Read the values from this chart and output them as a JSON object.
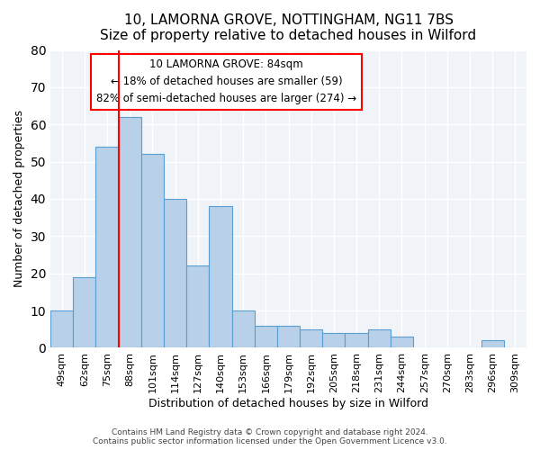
{
  "title": "10, LAMORNA GROVE, NOTTINGHAM, NG11 7BS",
  "subtitle": "Size of property relative to detached houses in Wilford",
  "xlabel": "Distribution of detached houses by size in Wilford",
  "ylabel": "Number of detached properties",
  "bar_color": "#b8d0e8",
  "bar_edge_color": "#5a9fd4",
  "background_color": "#f0f4f8",
  "bins": [
    "49sqm",
    "62sqm",
    "75sqm",
    "88sqm",
    "101sqm",
    "114sqm",
    "127sqm",
    "140sqm",
    "153sqm",
    "166sqm",
    "179sqm",
    "192sqm",
    "205sqm",
    "218sqm",
    "231sqm",
    "244sqm",
    "257sqm",
    "270sqm",
    "283sqm",
    "296sqm",
    "309sqm"
  ],
  "values": [
    10,
    19,
    54,
    62,
    52,
    40,
    22,
    38,
    10,
    6,
    6,
    5,
    4,
    4,
    5,
    3,
    0,
    0,
    0,
    2,
    0
  ],
  "vline_x_index": 3,
  "ylim": [
    0,
    80
  ],
  "yticks": [
    0,
    10,
    20,
    30,
    40,
    50,
    60,
    70,
    80
  ],
  "annotation_title": "10 LAMORNA GROVE: 84sqm",
  "annotation_line1": "← 18% of detached houses are smaller (59)",
  "annotation_line2": "82% of semi-detached houses are larger (274) →",
  "footer1": "Contains HM Land Registry data © Crown copyright and database right 2024.",
  "footer2": "Contains public sector information licensed under the Open Government Licence v3.0."
}
